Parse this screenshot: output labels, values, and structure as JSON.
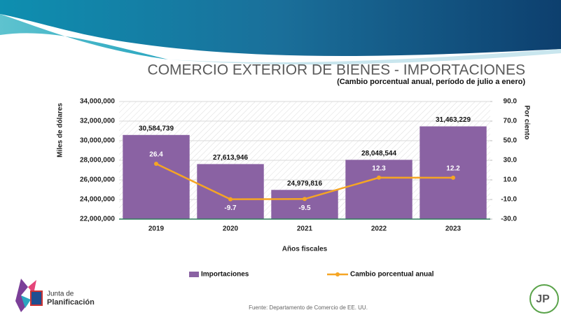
{
  "chart_data": {
    "type": "bar",
    "title": "COMERCIO EXTERIOR DE BIENES - IMPORTACIONES",
    "subtitle": "(Cambio porcentual anual, período de julio a enero)",
    "ylabel": "Miles de dólares",
    "y2label": "Por ciento",
    "xlabel": "Años fiscales",
    "categories": [
      "2019",
      "2020",
      "2021",
      "2022",
      "2023"
    ],
    "series": [
      {
        "name": "Importaciones",
        "type": "bar",
        "color": "#8a62a3",
        "values": [
          30584739,
          27613946,
          24979816,
          28048544,
          31463229
        ],
        "value_labels": [
          "30,584,739",
          "27,613,946",
          "24,979,816",
          "28,048,544",
          "31,463,229"
        ]
      },
      {
        "name": "Cambio porcentual anual",
        "type": "line",
        "axis": "y2",
        "color": "#f5a524",
        "values": [
          26.4,
          -9.7,
          -9.5,
          12.3,
          12.2
        ]
      }
    ],
    "ylim": [
      22000000,
      34000000
    ],
    "yticks": [
      {
        "value": 22000000,
        "label": "22,000,000"
      },
      {
        "value": 24000000,
        "label": "24,000,000"
      },
      {
        "value": 26000000,
        "label": "26,000,000"
      },
      {
        "value": 28000000,
        "label": "28,000,000"
      },
      {
        "value": 30000000,
        "label": "30,000,000"
      },
      {
        "value": 32000000,
        "label": "32,000,000"
      },
      {
        "value": 34000000,
        "label": "34,000,000"
      }
    ],
    "y2lim": [
      -30,
      90
    ],
    "y2ticks": [
      {
        "value": -30,
        "label": "-30.0"
      },
      {
        "value": -10,
        "label": "-10.0"
      },
      {
        "value": 10,
        "label": "10.0"
      },
      {
        "value": 30,
        "label": "30.0"
      },
      {
        "value": 50,
        "label": "50.0"
      },
      {
        "value": 70,
        "label": "70.0"
      },
      {
        "value": 90,
        "label": "90.0"
      }
    ],
    "grid": true,
    "legend": "bottom"
  },
  "source": "Fuente: Departamento de Comercio de EE. UU.",
  "logo": {
    "line1": "Junta de",
    "line2": "Planificación",
    "badge": "JP"
  }
}
